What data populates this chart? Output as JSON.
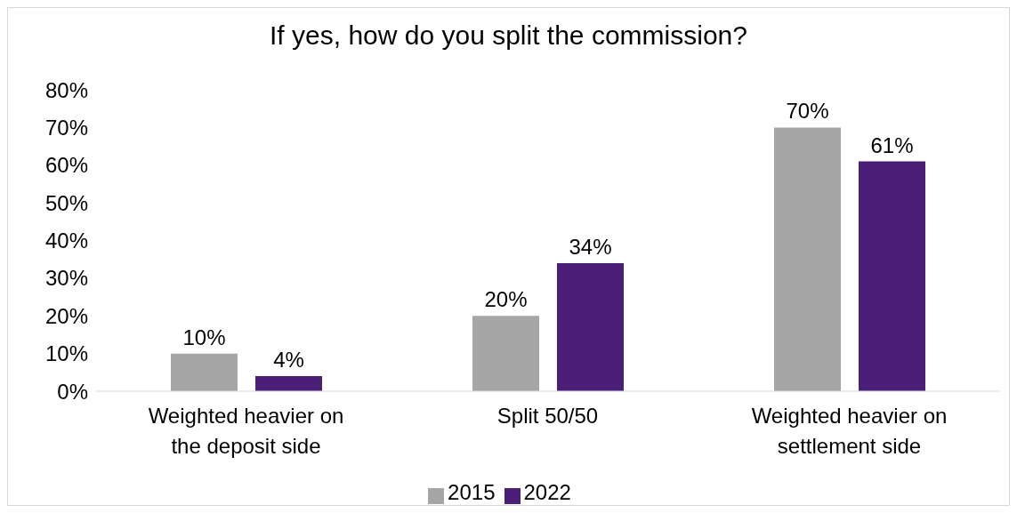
{
  "chart_data": {
    "type": "bar",
    "title": "If yes, how do you split the commission?",
    "categories": [
      "Weighted heavier on the deposit side",
      "Split 50/50",
      "Weighted heavier on settlement side"
    ],
    "series": [
      {
        "name": "2015",
        "color": "#a6a6a6",
        "values": [
          10,
          20,
          70
        ],
        "value_labels": [
          "10%",
          "20%",
          "70%"
        ]
      },
      {
        "name": "2022",
        "color": "#4b1e78",
        "values": [
          4,
          34,
          61
        ],
        "value_labels": [
          "4%",
          "34%",
          "61%"
        ]
      }
    ],
    "ylim": [
      0,
      80
    ],
    "yticks": [
      {
        "value": 0,
        "label": "0%"
      },
      {
        "value": 10,
        "label": "10%"
      },
      {
        "value": 20,
        "label": "20%"
      },
      {
        "value": 30,
        "label": "30%"
      },
      {
        "value": 40,
        "label": "40%"
      },
      {
        "value": 50,
        "label": "50%"
      },
      {
        "value": 60,
        "label": "60%"
      },
      {
        "value": 70,
        "label": "70%"
      },
      {
        "value": 80,
        "label": "80%"
      }
    ],
    "grid": false,
    "legend": "bottom"
  }
}
